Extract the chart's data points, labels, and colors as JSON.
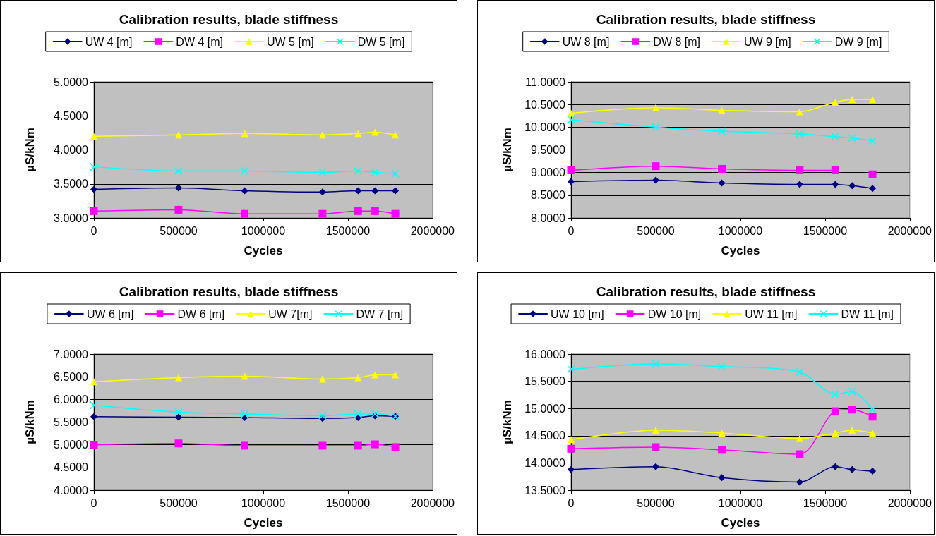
{
  "chart_data": [
    {
      "type": "line",
      "title": "Calibration results, blade stiffness",
      "xlabel": "Cycles",
      "ylabel": "µS/kNm",
      "legend": "top",
      "grid": "y",
      "x": [
        0,
        500000,
        890000,
        1350000,
        1560000,
        1660000,
        1780000
      ],
      "xlim": [
        0,
        2000000
      ],
      "xticks": [
        0,
        500000,
        1000000,
        1500000,
        2000000
      ],
      "ylim": [
        3,
        5
      ],
      "yticks": [
        {
          "value": 3,
          "label": "3.0000"
        },
        {
          "value": 3.5,
          "label": "3.5000"
        },
        {
          "value": 4,
          "label": "4.0000"
        },
        {
          "value": 4.5,
          "label": "4.5000"
        },
        {
          "value": 5,
          "label": "5.0000"
        }
      ],
      "series": [
        {
          "name": "UW 4 [m]",
          "color": "#000080",
          "marker": "diamond",
          "values": [
            3.42,
            3.44,
            3.4,
            3.38,
            3.4,
            3.4,
            3.4
          ]
        },
        {
          "name": "DW 4 [m]",
          "color": "#ff00ff",
          "marker": "square",
          "values": [
            3.1,
            3.12,
            3.06,
            3.06,
            3.1,
            3.1,
            3.06
          ]
        },
        {
          "name": "UW 5 [m]",
          "color": "#ffff00",
          "marker": "triangle",
          "values": [
            4.2,
            4.22,
            4.24,
            4.22,
            4.24,
            4.26,
            4.22
          ]
        },
        {
          "name": "DW 5 [m]",
          "color": "#00ffff",
          "marker": "cross",
          "values": [
            3.75,
            3.69,
            3.69,
            3.67,
            3.69,
            3.67,
            3.65
          ]
        }
      ]
    },
    {
      "type": "line",
      "title": "Calibration results, blade stiffness",
      "xlabel": "Cycles",
      "ylabel": "µS/kNm",
      "legend": "top",
      "grid": "y",
      "x": [
        0,
        500000,
        890000,
        1350000,
        1560000,
        1660000,
        1780000
      ],
      "xlim": [
        0,
        2000000
      ],
      "xticks": [
        0,
        500000,
        1000000,
        1500000,
        2000000
      ],
      "ylim": [
        8,
        11
      ],
      "yticks": [
        {
          "value": 8,
          "label": "8.0000"
        },
        {
          "value": 8.5,
          "label": "8.5000"
        },
        {
          "value": 9,
          "label": "9.0000"
        },
        {
          "value": 9.5,
          "label": "9.5000"
        },
        {
          "value": 10,
          "label": "10.0000"
        },
        {
          "value": 10.5,
          "label": "10.5000"
        },
        {
          "value": 11,
          "label": "11.0000"
        }
      ],
      "series": [
        {
          "name": "UW 8 [m]",
          "color": "#000080",
          "marker": "diamond",
          "values": [
            8.8,
            8.83,
            8.77,
            8.74,
            8.74,
            8.71,
            8.65
          ]
        },
        {
          "name": "DW 8 [m]",
          "color": "#ff00ff",
          "marker": "square",
          "values": [
            9.05,
            9.14,
            9.08,
            9.05,
            9.05,
            null,
            8.96
          ]
        },
        {
          "name": "UW 9 [m]",
          "color": "#ffff00",
          "marker": "triangle",
          "values": [
            10.31,
            10.43,
            10.37,
            10.34,
            10.55,
            10.61,
            10.61
          ]
        },
        {
          "name": "DW 9 [m]",
          "color": "#00ffff",
          "marker": "cross",
          "values": [
            10.16,
            10.0,
            9.91,
            9.85,
            9.79,
            9.76,
            9.7
          ]
        }
      ]
    },
    {
      "type": "line",
      "title": "Calibration results, blade stiffness",
      "xlabel": "Cycles",
      "ylabel": "µS/kNm",
      "legend": "top",
      "grid": "y",
      "x": [
        0,
        500000,
        890000,
        1350000,
        1560000,
        1660000,
        1780000
      ],
      "xlim": [
        0,
        2000000
      ],
      "xticks": [
        0,
        500000,
        1000000,
        1500000,
        2000000
      ],
      "ylim": [
        4,
        7
      ],
      "yticks": [
        {
          "value": 4,
          "label": "4.0000"
        },
        {
          "value": 4.5,
          "label": "4.5000"
        },
        {
          "value": 5,
          "label": "5.0000"
        },
        {
          "value": 5.5,
          "label": "5.5000"
        },
        {
          "value": 6,
          "label": "6.0000"
        },
        {
          "value": 6.5,
          "label": "6.5000"
        },
        {
          "value": 7,
          "label": "7.0000"
        }
      ],
      "series": [
        {
          "name": "UW 6 [m]",
          "color": "#000080",
          "marker": "diamond",
          "values": [
            5.62,
            5.61,
            5.6,
            5.58,
            5.6,
            5.64,
            5.63
          ]
        },
        {
          "name": "DW 6 [m]",
          "color": "#ff00ff",
          "marker": "square",
          "values": [
            5.0,
            5.03,
            4.98,
            4.98,
            4.98,
            5.01,
            4.95
          ]
        },
        {
          "name": "UW 7[m]",
          "color": "#ffff00",
          "marker": "triangle",
          "values": [
            6.39,
            6.48,
            6.51,
            6.45,
            6.48,
            6.54,
            6.54
          ]
        },
        {
          "name": "DW 7 [m]",
          "color": "#00ffff",
          "marker": "cross",
          "values": [
            5.87,
            5.72,
            5.68,
            5.64,
            5.68,
            5.68,
            5.63
          ]
        }
      ]
    },
    {
      "type": "line",
      "title": "Calibration results, blade stiffness",
      "xlabel": "Cycles",
      "ylabel": "µS/kNm",
      "legend": "top",
      "grid": "y",
      "x": [
        0,
        500000,
        890000,
        1350000,
        1560000,
        1660000,
        1780000
      ],
      "xlim": [
        0,
        2000000
      ],
      "xticks": [
        0,
        500000,
        1000000,
        1500000,
        2000000
      ],
      "ylim": [
        13.5,
        16
      ],
      "yticks": [
        {
          "value": 13.5,
          "label": "13.5000"
        },
        {
          "value": 14,
          "label": "14.0000"
        },
        {
          "value": 14.5,
          "label": "14.5000"
        },
        {
          "value": 15,
          "label": "15.0000"
        },
        {
          "value": 15.5,
          "label": "15.5000"
        },
        {
          "value": 16,
          "label": "16.0000"
        }
      ],
      "series": [
        {
          "name": "UW 10 [m]",
          "color": "#000080",
          "marker": "diamond",
          "values": [
            13.88,
            13.93,
            13.73,
            13.65,
            13.93,
            13.88,
            13.85
          ]
        },
        {
          "name": "DW 10 [m]",
          "color": "#ff00ff",
          "marker": "square",
          "values": [
            14.26,
            14.29,
            14.24,
            14.16,
            14.95,
            14.98,
            14.85
          ]
        },
        {
          "name": "UW 11 [m]",
          "color": "#ffff00",
          "marker": "triangle",
          "values": [
            14.43,
            14.6,
            14.55,
            14.45,
            14.55,
            14.6,
            14.55
          ]
        },
        {
          "name": "DW 11 [m]",
          "color": "#00ffff",
          "marker": "cross",
          "values": [
            15.72,
            15.82,
            15.77,
            15.67,
            15.26,
            15.31,
            14.98
          ]
        }
      ]
    }
  ]
}
